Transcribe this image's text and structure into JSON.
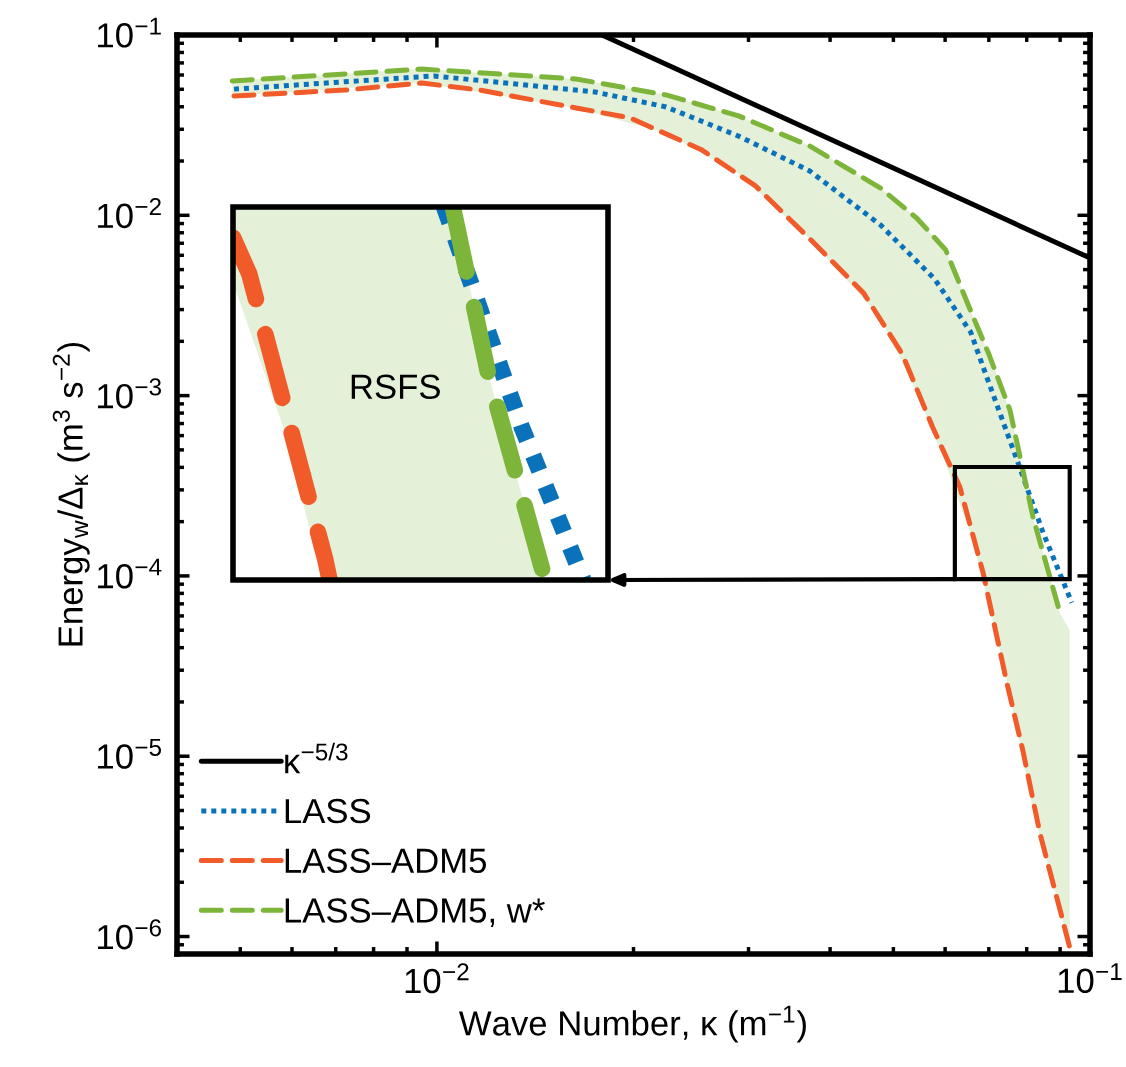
{
  "chart_data": {
    "type": "line",
    "xlabel": "Wave Number, κ (m$^{−1}$)",
    "ylabel": "Energy$_{w}$/Δ$_{κ}$ (m$^{3}$ s$^{−2}$)",
    "log": "xy",
    "legend": "bottom left",
    "xlim": [
      0.004,
      0.1
    ],
    "ylim": [
      8e-07,
      0.1
    ],
    "xticks": [
      {
        "value": 0.01,
        "label": "10$^{−2}$"
      },
      {
        "value": 0.1,
        "label": "10$^{−1}$"
      }
    ],
    "yticks": [
      {
        "value": 1e-06,
        "label": "10$^{−6}$"
      },
      {
        "value": 1e-05,
        "label": "10$^{−5}$"
      },
      {
        "value": 0.0001,
        "label": "10$^{−4}$"
      },
      {
        "value": 0.001,
        "label": "10$^{−3}$"
      },
      {
        "value": 0.01,
        "label": "10$^{−2}$"
      },
      {
        "value": 0.1,
        "label": "10$^{−1}$"
      }
    ],
    "annotations": [
      "RSFS"
    ],
    "series": [
      {
        "name": "κ$^{−5/3}$",
        "color": "#000000",
        "line_style": "solid",
        "x": [
          0.0179,
          0.1
        ],
        "values": [
          0.1,
          0.0058
        ]
      },
      {
        "name": "LASS",
        "color": "#0a72ba",
        "line_style": "dotted",
        "x": [
          0.00489,
          0.00989,
          0.01746,
          0.02244,
          0.02897,
          0.03724,
          0.04779,
          0.0578,
          0.06566,
          0.0686,
          0.0773,
          0.0848,
          0.0938
        ],
        "values": [
          0.0501,
          0.0593,
          0.0483,
          0.0399,
          0.0275,
          0.0176,
          0.00883,
          0.00444,
          0.00225,
          0.00144,
          0.00044,
          0.000173,
          7.1e-05
        ]
      },
      {
        "name": "LASS–ADM5",
        "color": "#f15a29",
        "line_style": "dashed",
        "x": [
          0.00489,
          0.00723,
          0.00948,
          0.01164,
          0.01633,
          0.01977,
          0.02547,
          0.03075,
          0.03724,
          0.045,
          0.0516,
          0.0574,
          0.0632,
          0.0686,
          0.0746,
          0.0789,
          0.0838,
          0.09,
          0.0931
        ],
        "values": [
          0.0459,
          0.0495,
          0.0542,
          0.0495,
          0.0394,
          0.0347,
          0.023,
          0.01455,
          0.0074,
          0.00371,
          0.0017,
          0.00067,
          0.000311,
          0.000104,
          2.55e-05,
          1.08e-05,
          3.75e-06,
          1.4e-06,
          8.7e-07
        ]
      },
      {
        "name": "LASS–ADM5, w*",
        "color": "#7cb53a",
        "line_style": "dashed",
        "x": [
          0.00486,
          0.00948,
          0.01633,
          0.02244,
          0.02897,
          0.03724,
          0.04779,
          0.05427,
          0.06012,
          0.06566,
          0.07,
          0.0754,
          0.0818,
          0.09,
          0.0931
        ],
        "values": [
          0.0556,
          0.0647,
          0.057,
          0.0465,
          0.0356,
          0.0242,
          0.01416,
          0.00966,
          0.00643,
          0.00295,
          0.0017,
          0.000832,
          0.000212,
          6.2e-05,
          null
        ],
        "lower": [
          0.0459,
          0.0542,
          0.0394,
          0.0285,
          0.017,
          0.0074,
          0.0027,
          0.00105,
          0.00042,
          0.00017,
          7e-05,
          2.2e-05,
          5e-06,
          1.4e-06,
          8.7e-07
        ],
        "upper": [
          0.0556,
          0.0647,
          0.057,
          0.0465,
          0.0356,
          0.0242,
          0.01416,
          0.00966,
          0.00643,
          0.00295,
          0.0017,
          0.000832,
          0.000212,
          6.2e-05,
          5e-05
        ]
      }
    ]
  }
}
